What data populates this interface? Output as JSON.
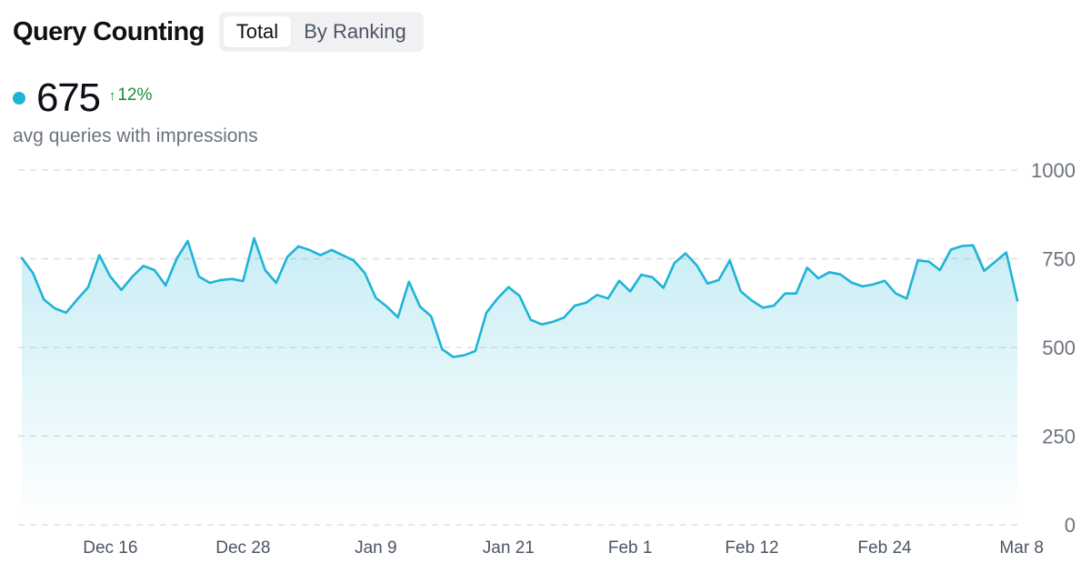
{
  "header": {
    "title": "Query Counting"
  },
  "tabs": [
    {
      "label": "Total",
      "active": true
    },
    {
      "label": "By Ranking",
      "active": false
    }
  ],
  "metric": {
    "value": "675",
    "change": "12%",
    "change_icon": "arrow-up-icon",
    "label": "avg queries with impressions"
  },
  "colors": {
    "series": "#1eb4d6",
    "grid": "#d9d9d9",
    "positive": "#1f8a3b"
  },
  "chart_data": {
    "type": "area",
    "x": [
      "Dec 8",
      "Dec 9",
      "Dec 10",
      "Dec 11",
      "Dec 12",
      "Dec 13",
      "Dec 14",
      "Dec 15",
      "Dec 16",
      "Dec 17",
      "Dec 18",
      "Dec 19",
      "Dec 20",
      "Dec 21",
      "Dec 22",
      "Dec 23",
      "Dec 24",
      "Dec 25",
      "Dec 26",
      "Dec 27",
      "Dec 28",
      "Dec 29",
      "Dec 30",
      "Dec 31",
      "Jan 1",
      "Jan 2",
      "Jan 3",
      "Jan 4",
      "Jan 5",
      "Jan 6",
      "Jan 7",
      "Jan 8",
      "Jan 9",
      "Jan 10",
      "Jan 11",
      "Jan 12",
      "Jan 13",
      "Jan 14",
      "Jan 15",
      "Jan 16",
      "Jan 17",
      "Jan 18",
      "Jan 19",
      "Jan 20",
      "Jan 21",
      "Jan 22",
      "Jan 23",
      "Jan 24",
      "Jan 25",
      "Jan 26",
      "Jan 27",
      "Jan 28",
      "Jan 29",
      "Jan 30",
      "Jan 31",
      "Feb 1",
      "Feb 2",
      "Feb 3",
      "Feb 4",
      "Feb 5",
      "Feb 6",
      "Feb 7",
      "Feb 8",
      "Feb 9",
      "Feb 10",
      "Feb 11",
      "Feb 12",
      "Feb 13",
      "Feb 14",
      "Feb 15",
      "Feb 16",
      "Feb 17",
      "Feb 18",
      "Feb 19",
      "Feb 20",
      "Feb 21",
      "Feb 22",
      "Feb 23",
      "Feb 24",
      "Feb 25",
      "Feb 26",
      "Feb 27",
      "Feb 28",
      "Mar 1",
      "Mar 2",
      "Mar 3",
      "Mar 4",
      "Mar 5",
      "Mar 6",
      "Mar 7",
      "Mar 8"
    ],
    "series": [
      {
        "values": [
          752,
          710,
          635,
          610,
          598,
          635,
          670,
          760,
          700,
          662,
          700,
          730,
          718,
          675,
          750,
          800,
          700,
          682,
          690,
          693,
          687,
          808,
          718,
          682,
          755,
          785,
          775,
          760,
          775,
          760,
          745,
          710,
          640,
          615,
          585,
          685,
          615,
          588,
          495,
          473,
          478,
          490,
          598,
          638,
          670,
          645,
          578,
          565,
          572,
          584,
          618,
          626,
          648,
          638,
          688,
          658,
          705,
          698,
          668,
          738,
          765,
          732,
          680,
          690,
          745,
          658,
          632,
          612,
          618,
          652,
          652,
          725,
          695,
          712,
          706,
          683,
          672,
          678,
          688,
          652,
          638,
          745,
          742,
          718,
          776,
          786,
          788,
          716,
          742,
          768,
          632
        ]
      }
    ],
    "ylim": [
      0,
      1000
    ],
    "yticks": [
      0,
      250,
      500,
      750,
      1000
    ],
    "xticks": [
      "Dec 16",
      "Dec 28",
      "Jan 9",
      "Jan 21",
      "Feb 1",
      "Feb 12",
      "Feb 24",
      "Mar 8"
    ],
    "grid": true
  }
}
